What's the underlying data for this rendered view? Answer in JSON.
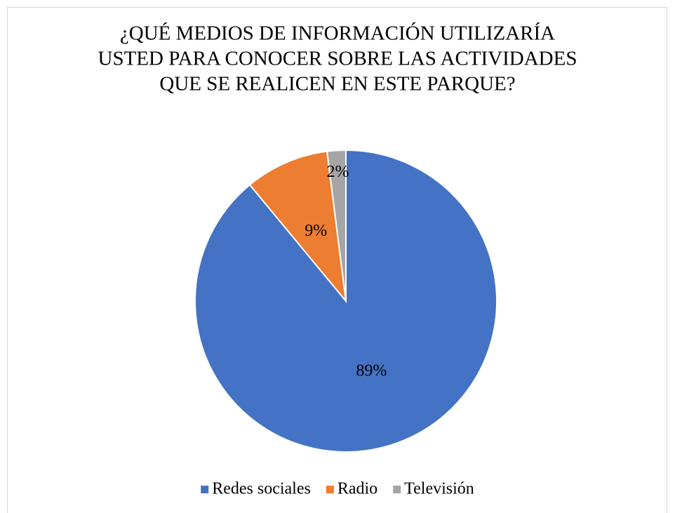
{
  "chart_data": {
    "type": "pie",
    "title": [
      "¿QUÉ MEDIOS DE INFORMACIÓN UTILIZARÍA",
      "USTED PARA CONOCER SOBRE LAS ACTIVIDADES",
      "QUE SE REALICEN EN ESTE PARQUE?"
    ],
    "categories": [
      "Redes sociales",
      "Radio",
      "Televisión"
    ],
    "values": [
      89,
      9,
      2
    ],
    "value_labels": [
      "89%",
      "9%",
      "2%"
    ],
    "colors": [
      "#4472c4",
      "#ed7d31",
      "#a5a5a5"
    ],
    "legend": "bottom"
  }
}
